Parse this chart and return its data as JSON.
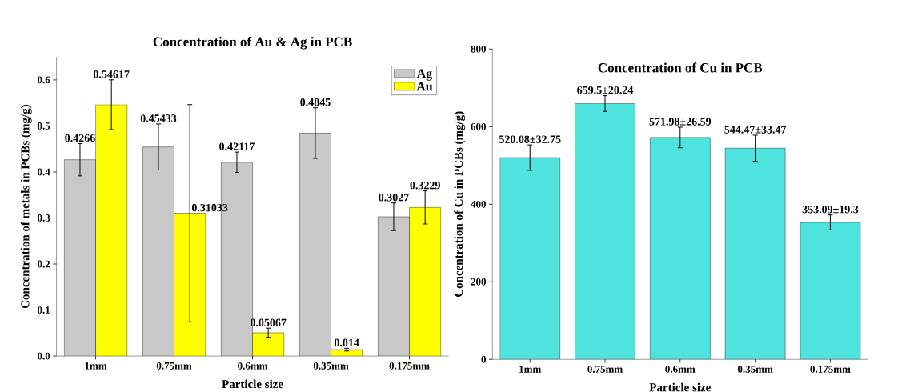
{
  "chart_data": [
    {
      "type": "bar",
      "title": "Concentration of Au & Ag in PCB",
      "xlabel": "Particle size",
      "ylabel": "Concentration of metals in PCBs (mg/g)",
      "categories": [
        "1mm",
        "0.75mm",
        "0.6mm",
        "0.35mm",
        "0.175mm"
      ],
      "series": [
        {
          "name": "Ag",
          "color": "#c8c8c8",
          "values": [
            0.4266,
            0.45433,
            0.42117,
            0.4845,
            0.3027
          ],
          "errors": [
            0.035,
            0.05,
            0.022,
            0.055,
            0.03
          ]
        },
        {
          "name": "Au",
          "color": "#ffff00",
          "values": [
            0.54617,
            0.31033,
            0.05067,
            0.014,
            0.3229
          ],
          "errors": [
            0.054,
            0.236,
            0.01,
            0.003,
            0.036
          ]
        }
      ],
      "ylim": [
        0,
        0.65
      ],
      "yticks": [
        {
          "value": 0,
          "label": "0.0"
        },
        0.1,
        0.2,
        0.3,
        0.4,
        0.5,
        0.6
      ],
      "legend": "top right",
      "data_labels": true
    },
    {
      "type": "bar",
      "title": "Concentration of Cu in PCB",
      "xlabel": "Particle size",
      "ylabel": "Concentration of Cu in PCBs (mg/g)",
      "categories": [
        "1mm",
        "0.75mm",
        "0.6mm",
        "0.35mm",
        "0.175mm"
      ],
      "series": [
        {
          "color": "#4fe3df",
          "values": [
            520.08,
            659.5,
            571.98,
            544.47,
            353.09
          ],
          "errors": [
            32.75,
            20.24,
            26.59,
            33.47,
            19.3
          ],
          "value_labels": [
            "520.08±32.75",
            "659.5±20.24",
            "571.98±26.59",
            "544.47±33.47",
            "353.09±19.3"
          ]
        }
      ],
      "ylim": [
        0,
        800
      ],
      "yticks": [
        0,
        200,
        400,
        600,
        800
      ]
    }
  ]
}
